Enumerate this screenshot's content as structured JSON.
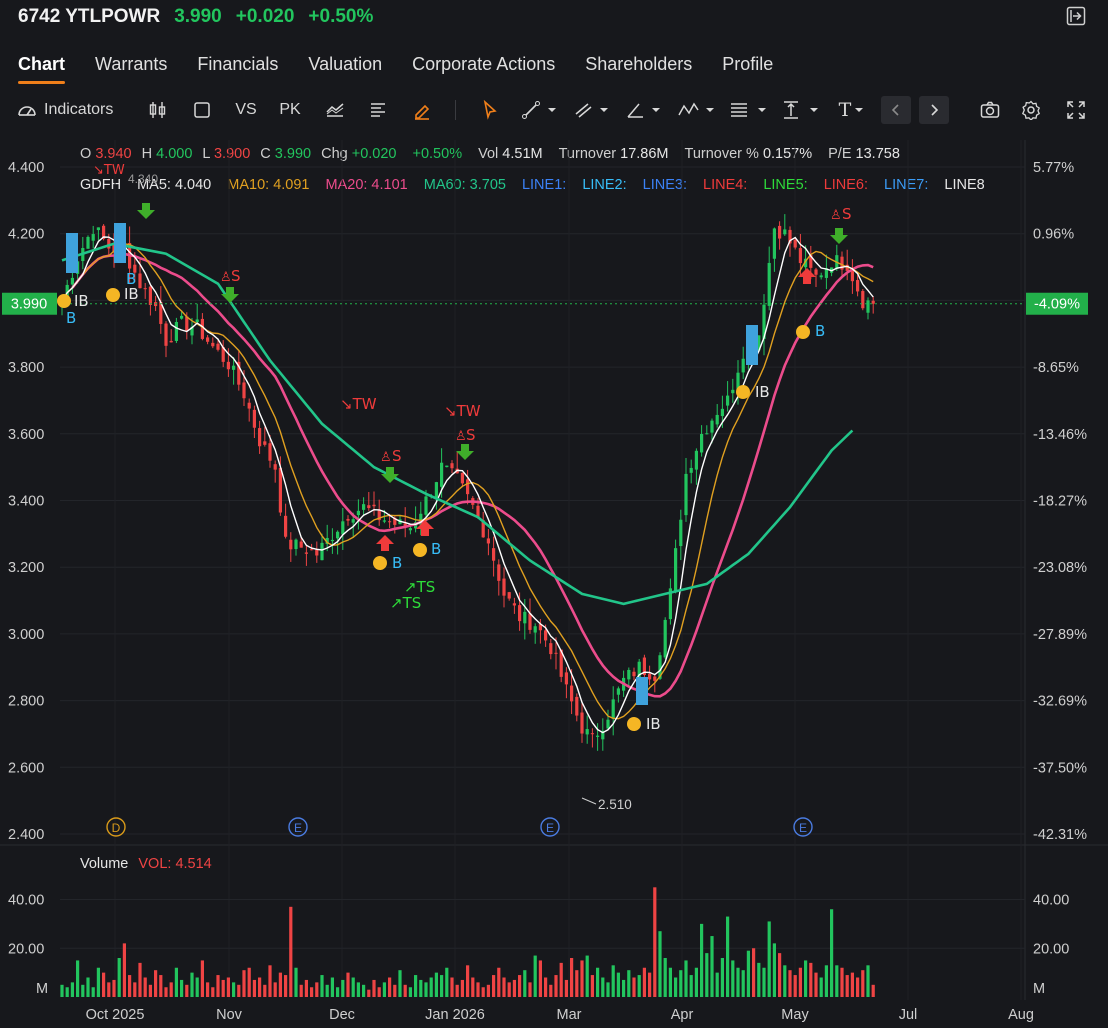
{
  "header": {
    "symbol": "6742 YTLPOWR",
    "price": "3.990",
    "change": "+0.020",
    "change_pct": "+0.50%"
  },
  "tabs": [
    "Chart",
    "Warrants",
    "Financials",
    "Valuation",
    "Corporate Actions",
    "Shareholders",
    "Profile"
  ],
  "toolbar": {
    "indicators_label": "Indicators",
    "vs_label": "VS",
    "pk_label": "PK",
    "text_tool": "T"
  },
  "ohlc": {
    "o_label": "O",
    "o": "3.940",
    "h_label": "H",
    "h": "4.000",
    "l_label": "L",
    "l": "3.900",
    "c_label": "C",
    "c": "3.990",
    "chg_label": "Chg",
    "chg": "+0.020",
    "chg_pct": "+0.50%",
    "vol_label": "Vol",
    "vol": "4.51M",
    "turnover_label": "Turnover",
    "turnover": "17.86M",
    "turnover_pct_label": "Turnover %",
    "turnover_pct": "0.157%",
    "pe_label": "P/E",
    "pe": "13.758"
  },
  "ma_legend": [
    {
      "text": "GDFH",
      "color": "#e6e6e6"
    },
    {
      "text": "MA5: 4.040",
      "color": "#e6e6e6"
    },
    {
      "text": "MA10: 4.091",
      "color": "#e0a020"
    },
    {
      "text": "MA20: 4.101",
      "color": "#ec4c8c"
    },
    {
      "text": "MA60: 3.705",
      "color": "#22c58a"
    },
    {
      "text": "LINE1:",
      "color": "#3b82f6"
    },
    {
      "text": "LINE2:",
      "color": "#38bdf8"
    },
    {
      "text": "LINE3:",
      "color": "#3b82f6"
    },
    {
      "text": "LINE4:",
      "color": "#ef3b3b"
    },
    {
      "text": "LINE5:",
      "color": "#2edc3a"
    },
    {
      "text": "LINE6:",
      "color": "#ef3b3b"
    },
    {
      "text": "LINE7:",
      "color": "#3b9cf6"
    },
    {
      "text": "LINE8",
      "color": "#e6e6e6"
    }
  ],
  "colors": {
    "up": "#22c55e",
    "down": "#ef4444",
    "ma5": "#ffffff",
    "ma10": "#e0a020",
    "ma20": "#ec4c8c",
    "ma60": "#22c58a",
    "badge": "#22b04a",
    "accent": "#f07f1a"
  },
  "current_price_badge": "3.990",
  "current_pct_badge": "-4.09%",
  "low_annotation": "2.510",
  "high_annotation": "4.340",
  "volume": {
    "title": "Volume",
    "vol_label": "VOL: 4.514",
    "unit": "M"
  },
  "signals": {
    "tw": "TW",
    "ts": "TS",
    "s": "S",
    "b": "B",
    "ib": "IB"
  },
  "event_markers": {
    "d": "D",
    "e": "E"
  },
  "chart_data": [
    {
      "type": "candlestick",
      "title": "",
      "x_ticks": [
        "Oct 2025",
        "Nov",
        "Dec",
        "Jan 2026",
        "Mar",
        "Apr",
        "May",
        "Jul",
        "Aug"
      ],
      "y_ticks": [
        "4.400",
        "4.200",
        "4.000",
        "3.800",
        "3.600",
        "3.400",
        "3.200",
        "3.000",
        "2.800",
        "2.600",
        "2.400"
      ],
      "right_pct_ticks": [
        "5.77%",
        "0.96%",
        "-4.09%",
        "-8.65%",
        "-13.46%",
        "-18.27%",
        "-23.08%",
        "-27.89%",
        "-32.69%",
        "-37.50%",
        "-42.31%"
      ],
      "ylim": [
        2.4,
        4.4
      ],
      "close_anchors": [
        [
          0,
          4.0
        ],
        [
          3,
          4.13
        ],
        [
          6,
          4.22
        ],
        [
          9,
          4.16
        ],
        [
          12,
          4.15
        ],
        [
          15,
          4.05
        ],
        [
          18,
          3.98
        ],
        [
          20,
          3.88
        ],
        [
          23,
          3.93
        ],
        [
          26,
          3.92
        ],
        [
          29,
          3.86
        ],
        [
          32,
          3.81
        ],
        [
          35,
          3.72
        ],
        [
          38,
          3.58
        ],
        [
          41,
          3.5
        ],
        [
          43,
          3.27
        ],
        [
          46,
          3.26
        ],
        [
          49,
          3.24
        ],
        [
          52,
          3.3
        ],
        [
          55,
          3.36
        ],
        [
          58,
          3.38
        ],
        [
          61,
          3.35
        ],
        [
          64,
          3.33
        ],
        [
          67,
          3.32
        ],
        [
          70,
          3.4
        ],
        [
          73,
          3.5
        ],
        [
          76,
          3.46
        ],
        [
          79,
          3.38
        ],
        [
          82,
          3.28
        ],
        [
          85,
          3.12
        ],
        [
          88,
          3.05
        ],
        [
          91,
          3.03
        ],
        [
          94,
          2.96
        ],
        [
          97,
          2.83
        ],
        [
          100,
          2.72
        ],
        [
          102,
          2.68
        ],
        [
          105,
          2.76
        ],
        [
          108,
          2.86
        ],
        [
          111,
          2.9
        ],
        [
          114,
          2.88
        ],
        [
          117,
          3.12
        ],
        [
          120,
          3.48
        ],
        [
          123,
          3.6
        ],
        [
          126,
          3.67
        ],
        [
          128,
          3.7
        ],
        [
          131,
          3.85
        ],
        [
          134,
          3.9
        ],
        [
          137,
          4.22
        ],
        [
          139,
          4.2
        ],
        [
          142,
          4.12
        ],
        [
          145,
          4.07
        ],
        [
          148,
          4.12
        ],
        [
          151,
          4.11
        ],
        [
          154,
          4.0
        ],
        [
          156,
          3.99
        ]
      ],
      "ma60_anchors": [
        [
          0,
          4.12
        ],
        [
          10,
          4.17
        ],
        [
          20,
          4.14
        ],
        [
          30,
          4.05
        ],
        [
          40,
          3.82
        ],
        [
          50,
          3.63
        ],
        [
          60,
          3.5
        ],
        [
          70,
          3.42
        ],
        [
          80,
          3.35
        ],
        [
          90,
          3.22
        ],
        [
          100,
          3.12
        ],
        [
          108,
          3.09
        ],
        [
          116,
          3.12
        ],
        [
          124,
          3.15
        ],
        [
          132,
          3.24
        ],
        [
          140,
          3.38
        ],
        [
          148,
          3.55
        ],
        [
          152,
          3.61
        ]
      ]
    },
    {
      "type": "bar",
      "title": "Volume",
      "y_ticks": [
        "40.00",
        "20.00"
      ],
      "unit": "M",
      "values": [
        5,
        4,
        6,
        15,
        5,
        8,
        4,
        12,
        10,
        6,
        7,
        16,
        22,
        9,
        6,
        14,
        8,
        5,
        11,
        9,
        4,
        6,
        12,
        7,
        5,
        10,
        8,
        15,
        6,
        4,
        9,
        7,
        8,
        6,
        5,
        11,
        12,
        7,
        8,
        5,
        13,
        6,
        10,
        9,
        37,
        12,
        5,
        7,
        4,
        6,
        9,
        5,
        8,
        4,
        7,
        10,
        8,
        6,
        5,
        3,
        7,
        4,
        6,
        8,
        5,
        11,
        5,
        4,
        9,
        7,
        6,
        8,
        10,
        9,
        12,
        8,
        5,
        7,
        13,
        8,
        6,
        4,
        5,
        9,
        12,
        8,
        6,
        7,
        9,
        11,
        6,
        17,
        15,
        8,
        5,
        9,
        14,
        7,
        16,
        11,
        15,
        17,
        9,
        12,
        8,
        6,
        13,
        10,
        7,
        11,
        8,
        9,
        12,
        10,
        45,
        27,
        16,
        12,
        8,
        11,
        15,
        9,
        12,
        30,
        18,
        25,
        10,
        16,
        33,
        15,
        12,
        11,
        19,
        20,
        14,
        12,
        31,
        22,
        18,
        13,
        11,
        9,
        12,
        15,
        14,
        10,
        8,
        13,
        36,
        13,
        12,
        9,
        10,
        8,
        11,
        13,
        5
      ]
    }
  ]
}
